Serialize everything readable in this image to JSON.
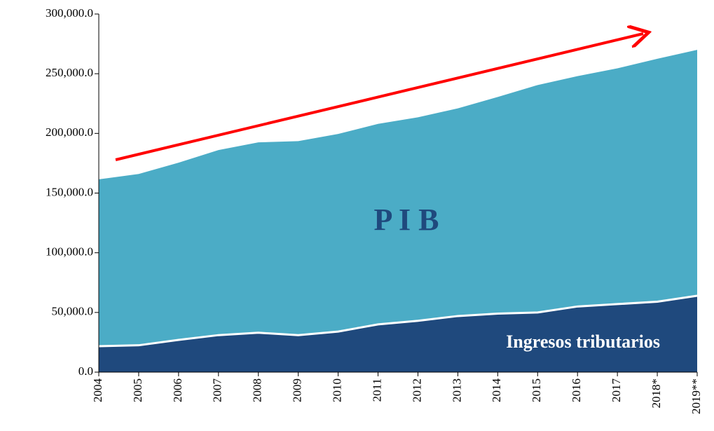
{
  "chart_data": {
    "type": "area",
    "categories": [
      "2004",
      "2005",
      "2006",
      "2007",
      "2008",
      "2009",
      "2010",
      "2011",
      "2012",
      "2013",
      "2014",
      "2015",
      "2016",
      "2017",
      "2018*",
      "2019**"
    ],
    "series": [
      {
        "name": "P I B",
        "color": "#4bacc6",
        "values": [
          161500,
          166000,
          175500,
          186000,
          192500,
          193500,
          199500,
          208000,
          213500,
          221000,
          230500,
          240500,
          248000,
          254500,
          262500,
          270000
        ]
      },
      {
        "name": "Ingresos tributarios",
        "color": "#1f497d",
        "values": [
          21700,
          22500,
          27000,
          31000,
          33000,
          31000,
          34000,
          40000,
          43000,
          47000,
          49000,
          50000,
          55000,
          57000,
          59000,
          64000
        ]
      }
    ],
    "ylim": [
      0,
      300000
    ],
    "yticks": [
      {
        "value": 0,
        "label": "0.0"
      },
      {
        "value": 50000,
        "label": "50,000.0"
      },
      {
        "value": 100000,
        "label": "100,000.0"
      },
      {
        "value": 150000,
        "label": "150,000.0"
      },
      {
        "value": 200000,
        "label": "200,000.0"
      },
      {
        "value": 250000,
        "label": "250,000.0"
      },
      {
        "value": 300000,
        "label": "300,000.0"
      }
    ]
  }
}
